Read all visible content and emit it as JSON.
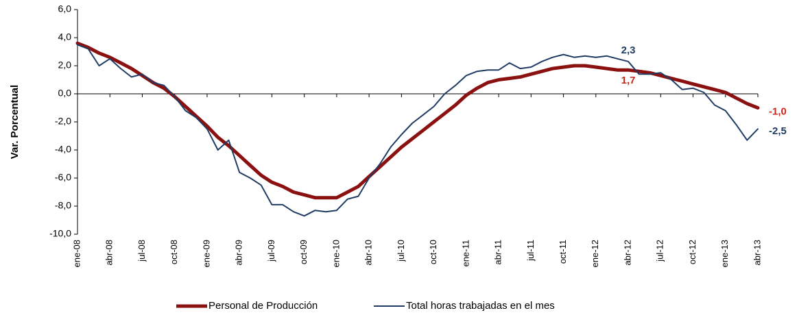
{
  "chart_data": {
    "type": "line",
    "y_label": "Var. Porcentual",
    "categories": [
      "ene-08",
      null,
      null,
      "abr-08",
      null,
      null,
      "jul-08",
      null,
      null,
      "oct-08",
      null,
      null,
      "ene-09",
      null,
      null,
      "abr-09",
      null,
      null,
      "jul-09",
      null,
      null,
      "oct-09",
      null,
      null,
      "ene-10",
      null,
      null,
      "abr-10",
      null,
      null,
      "jul-10",
      null,
      null,
      "oct-10",
      null,
      null,
      "ene-11",
      null,
      null,
      "abr-11",
      null,
      null,
      "jul-11",
      null,
      null,
      "oct-11",
      null,
      null,
      "ene-12",
      null,
      null,
      "abr-12",
      null,
      null,
      "jul-12",
      null,
      null,
      "oct-12",
      null,
      null,
      "ene-13",
      null,
      null,
      "abr-13"
    ],
    "series": [
      {
        "name": "Personal de Producción",
        "color": "#8b1010",
        "width": 5,
        "values": [
          3.6,
          3.3,
          2.9,
          2.6,
          2.2,
          1.8,
          1.3,
          0.8,
          0.4,
          -0.2,
          -0.9,
          -1.6,
          -2.3,
          -3.1,
          -3.7,
          -4.4,
          -5.1,
          -5.8,
          -6.3,
          -6.6,
          -7.0,
          -7.2,
          -7.4,
          -7.4,
          -7.4,
          -7.0,
          -6.6,
          -5.9,
          -5.2,
          -4.5,
          -3.8,
          -3.2,
          -2.6,
          -2.0,
          -1.4,
          -0.8,
          -0.1,
          0.4,
          0.8,
          1.0,
          1.1,
          1.2,
          1.4,
          1.6,
          1.8,
          1.9,
          2.0,
          2.0,
          1.9,
          1.8,
          1.7,
          1.7,
          1.6,
          1.5,
          1.3,
          1.1,
          0.9,
          0.7,
          0.5,
          0.3,
          0.1,
          -0.3,
          -0.7,
          -1.0
        ],
        "value_labels": [
          null,
          null,
          null,
          null,
          null,
          null,
          null,
          null,
          null,
          null,
          null,
          null,
          null,
          null,
          null,
          null,
          null,
          null,
          null,
          null,
          null,
          null,
          null,
          null,
          null,
          null,
          null,
          null,
          null,
          null,
          null,
          null,
          null,
          null,
          null,
          null,
          null,
          null,
          null,
          null,
          null,
          null,
          null,
          null,
          null,
          null,
          null,
          null,
          null,
          null,
          null,
          "1,7",
          null,
          null,
          null,
          null,
          null,
          null,
          null,
          null,
          null,
          null,
          null,
          "-1,0"
        ]
      },
      {
        "name": "Total horas trabajadas en el mes",
        "color": "#1f3b63",
        "width": 2,
        "values": [
          3.5,
          3.2,
          2.0,
          2.5,
          1.8,
          1.2,
          1.4,
          0.8,
          0.6,
          -0.2,
          -1.2,
          -1.7,
          -2.5,
          -4.0,
          -3.3,
          -5.6,
          -6.0,
          -6.5,
          -7.9,
          -7.9,
          -8.4,
          -8.7,
          -8.3,
          -8.4,
          -8.3,
          -7.5,
          -7.3,
          -6.0,
          -5.0,
          -3.8,
          -2.9,
          -2.1,
          -1.5,
          -0.9,
          0.0,
          0.6,
          1.3,
          1.6,
          1.7,
          1.7,
          2.2,
          1.8,
          1.9,
          2.3,
          2.6,
          2.8,
          2.6,
          2.7,
          2.6,
          2.7,
          2.5,
          2.3,
          1.4,
          1.4,
          1.5,
          1.0,
          0.3,
          0.4,
          0.1,
          -0.8,
          -1.2,
          -2.2,
          -3.3,
          -2.5
        ],
        "value_labels": [
          null,
          null,
          null,
          null,
          null,
          null,
          null,
          null,
          null,
          null,
          null,
          null,
          null,
          null,
          null,
          null,
          null,
          null,
          null,
          null,
          null,
          null,
          null,
          null,
          null,
          null,
          null,
          null,
          null,
          null,
          null,
          null,
          null,
          null,
          null,
          null,
          null,
          null,
          null,
          null,
          null,
          null,
          null,
          null,
          null,
          null,
          null,
          null,
          null,
          null,
          null,
          "2,3",
          null,
          null,
          null,
          null,
          null,
          null,
          null,
          null,
          null,
          null,
          null,
          "-2,5"
        ]
      }
    ],
    "ylim": [
      -10,
      6
    ],
    "yticks": [
      {
        "value": -10,
        "label": "-10,0"
      },
      {
        "value": -8,
        "label": "-8,0"
      },
      {
        "value": -6,
        "label": "-6,0"
      },
      {
        "value": -4,
        "label": "-4,0"
      },
      {
        "value": -2,
        "label": "-2,0"
      },
      {
        "value": 0,
        "label": "0,0"
      },
      {
        "value": 2,
        "label": "2,0"
      },
      {
        "value": 4,
        "label": "4,0"
      },
      {
        "value": 6,
        "label": "6,0"
      }
    ],
    "grid": false,
    "legend": "bottom"
  }
}
